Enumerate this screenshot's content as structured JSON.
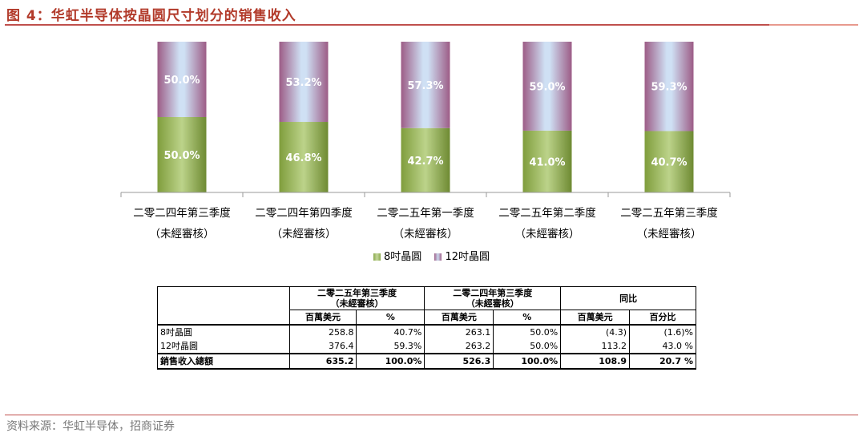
{
  "title": "图 4：华虹半导体按晶圆尺寸划分的销售收入",
  "source": "资料来源：华虹半导体，招商证券",
  "colors": {
    "accent": "#c0504d",
    "wafer8": "#7f9d3c",
    "wafer12": "#a0618a"
  },
  "chart_data": {
    "type": "bar",
    "stacked": true,
    "percent_stacked": true,
    "categories": [
      [
        "二零二四年第三季度",
        "（未經審核）"
      ],
      [
        "二零二四年第四季度",
        "（未經審核）"
      ],
      [
        "二零二五年第一季度",
        "（未經審核）"
      ],
      [
        "二零二五年第二季度",
        "（未經審核）"
      ],
      [
        "二零二五年第三季度",
        "（未經審核）"
      ]
    ],
    "series": [
      {
        "name": "8吋晶圓",
        "values": [
          50.0,
          46.8,
          42.7,
          41.0,
          40.7
        ],
        "labels": [
          "50.0%",
          "46.8%",
          "42.7%",
          "41.0%",
          "40.7%"
        ]
      },
      {
        "name": "12吋晶圓",
        "values": [
          50.0,
          53.2,
          57.3,
          59.0,
          59.3
        ],
        "labels": [
          "50.0%",
          "53.2%",
          "57.3%",
          "59.0%",
          "59.3%"
        ]
      }
    ],
    "ylim": [
      0,
      100
    ],
    "legend": "bottom",
    "grid": false
  },
  "table": {
    "period1": [
      "二零二五年第三季度",
      "（未經審核）"
    ],
    "period2": [
      "二零二四年第三季度",
      "（未經審核）"
    ],
    "yoy": "同比",
    "unit_mn": "百萬美元",
    "unit_pct": "%",
    "unit_pct_change": "百分比",
    "rows": [
      {
        "label": "8吋晶圓",
        "cells": [
          "258.8",
          "40.7%",
          "263.1",
          "50.0%",
          "(4.3)",
          "(1.6)%"
        ]
      },
      {
        "label": "12吋晶圓",
        "cells": [
          "376.4",
          "59.3%",
          "263.2",
          "50.0%",
          "113.2",
          "43.0 %"
        ]
      },
      {
        "label": "銷售收入總額",
        "cells": [
          "635.2",
          "100.0%",
          "526.3",
          "100.0%",
          "108.9",
          "20.7 %"
        ]
      }
    ]
  }
}
